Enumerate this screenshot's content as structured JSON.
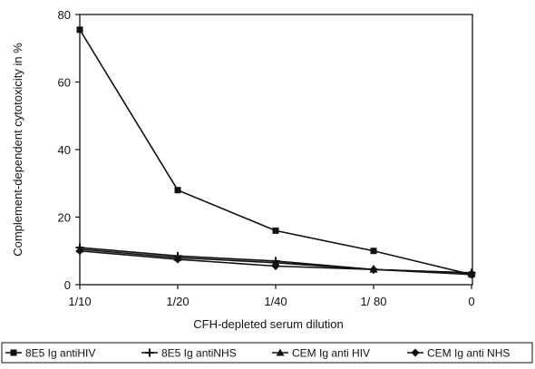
{
  "chart_data": {
    "type": "line",
    "xlabel": "CFH-depleted serum dilution",
    "ylabel": "Complement-dependent cytotoxicity in %",
    "categories": [
      "1/10",
      "1/20",
      "1/40",
      "1/ 80",
      "0"
    ],
    "ylim": [
      0,
      80
    ],
    "yticks": [
      0,
      20,
      40,
      60,
      80
    ],
    "grid": false,
    "legend_position": "bottom",
    "series": [
      {
        "name": "8E5 Ig antiHIV",
        "marker": "square",
        "values": [
          75.5,
          28,
          16,
          10,
          3
        ]
      },
      {
        "name": "8E5 Ig antiNHS",
        "marker": "cross",
        "values": [
          11,
          8.5,
          7,
          4.5,
          3.5
        ]
      },
      {
        "name": "CEM Ig anti HIV",
        "marker": "triangle",
        "values": [
          10.5,
          8,
          6.5,
          4.5,
          3.5
        ]
      },
      {
        "name": "CEM Ig anti NHS",
        "marker": "diamond",
        "values": [
          10,
          7.5,
          5.5,
          4.5,
          3
        ]
      }
    ],
    "colors": {
      "line": "#111111",
      "frame": "#111111",
      "background": "#ffffff"
    }
  }
}
